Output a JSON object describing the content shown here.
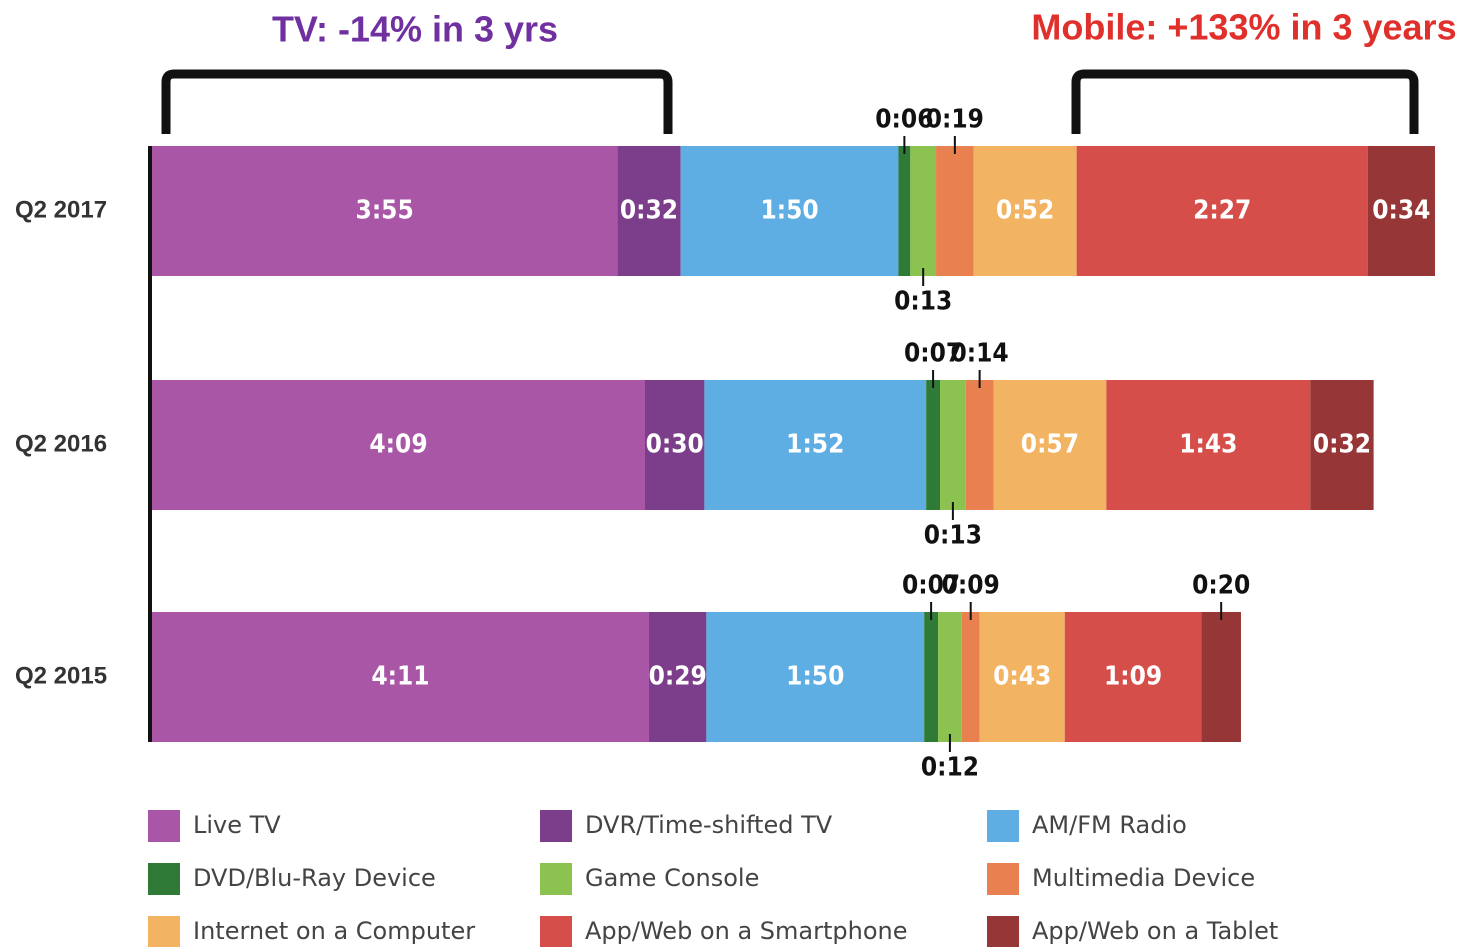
{
  "chart_data": {
    "type": "stacked-bar-horizontal",
    "annotations": [
      "TV: -14% in 3 yrs",
      "Mobile: +133% in 3 years"
    ],
    "categories": [
      "Q2 2017",
      "Q2 2016",
      "Q2 2015"
    ],
    "xlim": [
      0,
      648
    ],
    "series": [
      {
        "name": "Live TV",
        "color": "#a956a7",
        "values": [
          235,
          249,
          251
        ],
        "value_labels": [
          "3:55",
          "4:09",
          "4:11"
        ]
      },
      {
        "name": "DVR/Time-shifted TV",
        "color": "#7c3e8a",
        "values": [
          32,
          30,
          29
        ],
        "value_labels": [
          "0:32",
          "0:30",
          "0:29"
        ]
      },
      {
        "name": "AM/FM Radio",
        "color": "#5eade3",
        "values": [
          110,
          112,
          110
        ],
        "value_labels": [
          "1:50",
          "1:52",
          "1:50"
        ]
      },
      {
        "name": "DVD/Blu-Ray Device",
        "color": "#2e7a36",
        "values": [
          6,
          7,
          7
        ],
        "value_labels": [
          "0:06",
          "0:07",
          "0:07"
        ]
      },
      {
        "name": "Game Console",
        "color": "#8cc350",
        "values": [
          13,
          13,
          12
        ],
        "value_labels": [
          "0:13",
          "0:13",
          "0:12"
        ]
      },
      {
        "name": "Multimedia Device",
        "color": "#e8814f",
        "values": [
          19,
          14,
          9
        ],
        "value_labels": [
          "0:19",
          "0:14",
          "0:09"
        ]
      },
      {
        "name": "Internet on a Computer",
        "color": "#f2b462",
        "values": [
          52,
          57,
          43
        ],
        "value_labels": [
          "0:52",
          "0:57",
          "0:43"
        ]
      },
      {
        "name": "App/Web on a Smartphone",
        "color": "#d64e4a",
        "values": [
          147,
          103,
          69
        ],
        "value_labels": [
          "2:27",
          "1:43",
          "1:09"
        ]
      },
      {
        "name": "App/Web on a Tablet",
        "color": "#963636",
        "values": [
          34,
          32,
          20
        ],
        "value_labels": [
          "0:34",
          "0:32",
          "0:20"
        ]
      }
    ]
  }
}
